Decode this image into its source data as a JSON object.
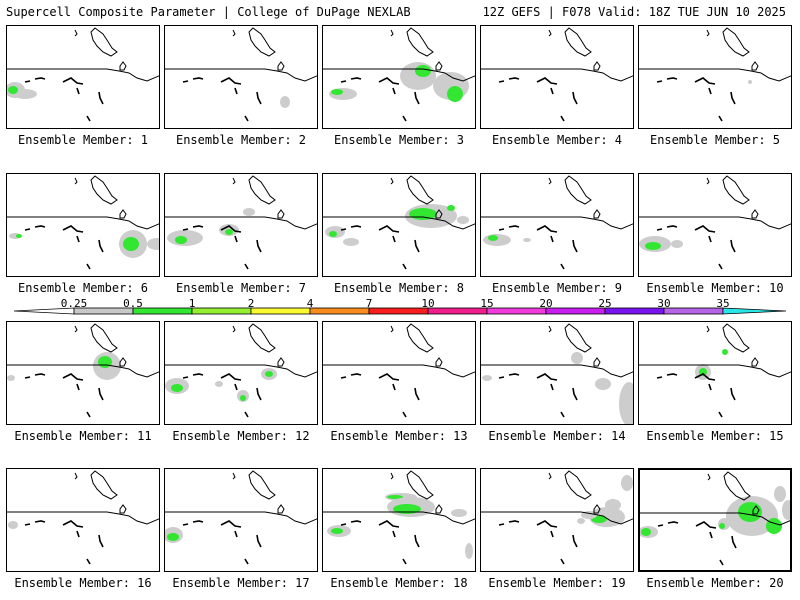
{
  "header": {
    "left": "Supercell Composite Parameter | College of DuPage NEXLAB",
    "right": "12Z GEFS | F078 Valid: 18Z TUE JUN 10 2025"
  },
  "colorbar": {
    "labels": [
      "0.25",
      "0.5",
      "1",
      "2",
      "4",
      "7",
      "10",
      "15",
      "20",
      "25",
      "30",
      "35"
    ],
    "colors": [
      "#ffffff",
      "#c8c8c8",
      "#32e632",
      "#96f032",
      "#fafa32",
      "#fa8c1e",
      "#fa1e1e",
      "#f01e8c",
      "#f03cdc",
      "#c81ef0",
      "#7814f0",
      "#b464e6",
      "#28e6e6"
    ]
  },
  "panel_label_prefix": "Ensemble Member:",
  "colors": {
    "map_lines": "#000000",
    "shade_light": "#cdcdcd",
    "shade_green": "#32e632"
  },
  "members": [
    {
      "id": 1,
      "label": "Ensemble Member: 1",
      "selected": false
    },
    {
      "id": 2,
      "label": "Ensemble Member: 2",
      "selected": false
    },
    {
      "id": 3,
      "label": "Ensemble Member: 3",
      "selected": false
    },
    {
      "id": 4,
      "label": "Ensemble Member: 4",
      "selected": false
    },
    {
      "id": 5,
      "label": "Ensemble Member: 5",
      "selected": false
    },
    {
      "id": 6,
      "label": "Ensemble Member: 6",
      "selected": false
    },
    {
      "id": 7,
      "label": "Ensemble Member: 7",
      "selected": false
    },
    {
      "id": 8,
      "label": "Ensemble Member: 8",
      "selected": false
    },
    {
      "id": 9,
      "label": "Ensemble Member: 9",
      "selected": false
    },
    {
      "id": 10,
      "label": "Ensemble Member: 10",
      "selected": false
    },
    {
      "id": 11,
      "label": "Ensemble Member: 11",
      "selected": false
    },
    {
      "id": 12,
      "label": "Ensemble Member: 12",
      "selected": false
    },
    {
      "id": 13,
      "label": "Ensemble Member: 13",
      "selected": false
    },
    {
      "id": 14,
      "label": "Ensemble Member: 14",
      "selected": false
    },
    {
      "id": 15,
      "label": "Ensemble Member: 15",
      "selected": false
    },
    {
      "id": 16,
      "label": "Ensemble Member: 16",
      "selected": false
    },
    {
      "id": 17,
      "label": "Ensemble Member: 17",
      "selected": false
    },
    {
      "id": 18,
      "label": "Ensemble Member: 18",
      "selected": false
    },
    {
      "id": 19,
      "label": "Ensemble Member: 19",
      "selected": false
    },
    {
      "id": 20,
      "label": "Ensemble Member: 20",
      "selected": true
    }
  ]
}
